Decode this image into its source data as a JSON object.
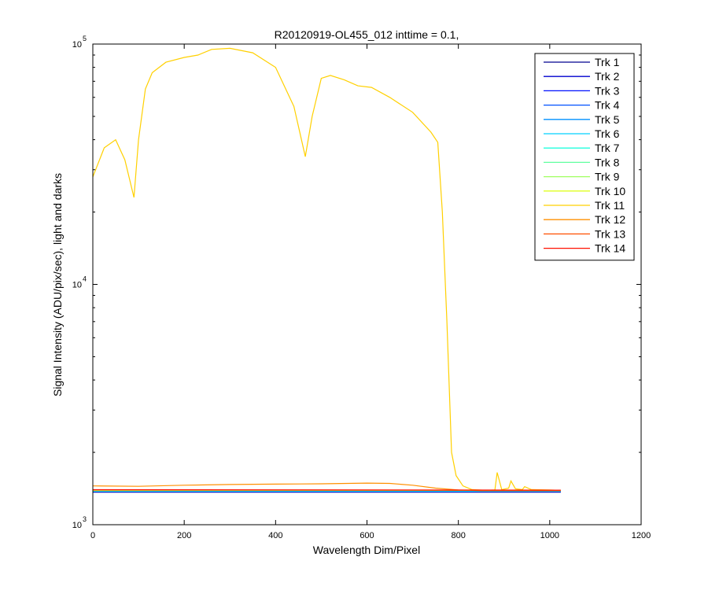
{
  "chart_data": {
    "type": "line",
    "title": "R20120919-OL455_012 inttime = 0.1,",
    "xlabel": "Wavelength Dim/Pixel",
    "ylabel": "Signal Intensity (ADU/pix/sec), light and darks",
    "xlim": [
      0,
      1200
    ],
    "ylim": [
      1000,
      100000
    ],
    "yscale": "log",
    "xticks": [
      "0",
      "200",
      "400",
      "600",
      "800",
      "1000",
      "1200"
    ],
    "yticks": [
      {
        "base": "10",
        "exp": "3",
        "value": 1000
      },
      {
        "base": "10",
        "exp": "4",
        "value": 10000
      },
      {
        "base": "10",
        "exp": "5",
        "value": 100000
      }
    ],
    "grid": false,
    "legend_position": "top-right",
    "series": [
      {
        "name": "Trk 1",
        "color": "#00008f",
        "x": [
          0,
          1024
        ],
        "y": [
          1365,
          1365
        ]
      },
      {
        "name": "Trk 2",
        "color": "#0000cf",
        "x": [
          0,
          1024
        ],
        "y": [
          1370,
          1370
        ]
      },
      {
        "name": "Trk 3",
        "color": "#0010ff",
        "x": [
          0,
          1024
        ],
        "y": [
          1372,
          1372
        ]
      },
      {
        "name": "Trk 4",
        "color": "#0050ff",
        "x": [
          0,
          1024
        ],
        "y": [
          1375,
          1375
        ]
      },
      {
        "name": "Trk 5",
        "color": "#0090ff",
        "x": [
          0,
          1024
        ],
        "y": [
          1378,
          1378
        ]
      },
      {
        "name": "Trk 6",
        "color": "#00d0ff",
        "x": [
          0,
          1024
        ],
        "y": [
          1380,
          1380
        ]
      },
      {
        "name": "Trk 7",
        "color": "#20ffdf",
        "x": [
          0,
          1024
        ],
        "y": [
          1383,
          1385
        ]
      },
      {
        "name": "Trk 8",
        "color": "#60ff9f",
        "x": [
          0,
          1024
        ],
        "y": [
          1385,
          1388
        ]
      },
      {
        "name": "Trk 9",
        "color": "#9fff60",
        "x": [
          0,
          1024
        ],
        "y": [
          1388,
          1390
        ]
      },
      {
        "name": "Trk 10",
        "color": "#dfff20",
        "x": [
          0,
          1024
        ],
        "y": [
          1392,
          1392
        ]
      },
      {
        "name": "Trk 11",
        "color": "#ffd000",
        "x": [
          0,
          25,
          50,
          70,
          90,
          100,
          115,
          130,
          160,
          200,
          230,
          260,
          300,
          350,
          400,
          440,
          465,
          480,
          500,
          520,
          550,
          580,
          610,
          650,
          700,
          740,
          755,
          765,
          775,
          785,
          795,
          810,
          830,
          860,
          880,
          885,
          895,
          910,
          915,
          925,
          940,
          945,
          960,
          1000,
          1024
        ],
        "y": [
          28000,
          37000,
          40000,
          33000,
          23000,
          40000,
          65000,
          76000,
          84000,
          88000,
          90000,
          95000,
          96000,
          92000,
          80000,
          55000,
          34000,
          50000,
          72000,
          74000,
          71000,
          67000,
          66000,
          60000,
          52000,
          43000,
          39000,
          20000,
          7000,
          2000,
          1600,
          1450,
          1400,
          1390,
          1395,
          1650,
          1400,
          1420,
          1520,
          1410,
          1400,
          1440,
          1400,
          1395,
          1390
        ]
      },
      {
        "name": "Trk 12",
        "color": "#ff9000",
        "x": [
          0,
          100,
          200,
          300,
          400,
          500,
          600,
          650,
          700,
          750,
          800,
          850,
          1024
        ],
        "y": [
          1450,
          1445,
          1460,
          1470,
          1475,
          1480,
          1490,
          1485,
          1460,
          1420,
          1395,
          1385,
          1385
        ]
      },
      {
        "name": "Trk 13",
        "color": "#ff5000",
        "x": [
          0,
          1024
        ],
        "y": [
          1395,
          1390
        ]
      },
      {
        "name": "Trk 14",
        "color": "#ff1000",
        "x": [
          0,
          1024
        ],
        "y": [
          1398,
          1392
        ]
      }
    ]
  }
}
